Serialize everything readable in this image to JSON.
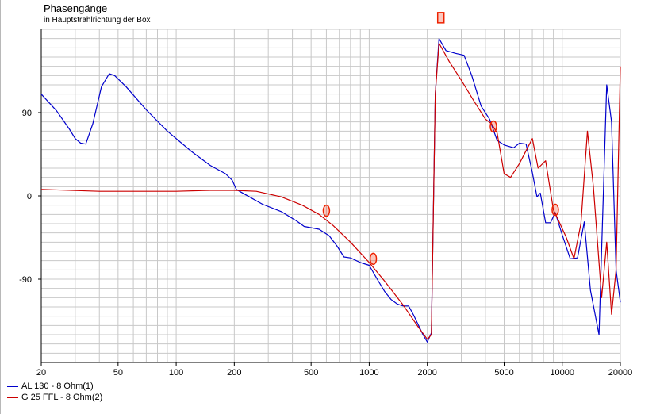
{
  "chart_data": {
    "type": "line",
    "title": "Phasengänge",
    "subtitle": "in Hauptstrahlrichtung der Box",
    "xscale": "log",
    "xlim": [
      20,
      20000
    ],
    "ylim": [
      -180,
      180
    ],
    "x_ticks": [
      {
        "value": 20,
        "label": "20"
      },
      {
        "value": 50,
        "label": "50"
      },
      {
        "value": 100,
        "label": "100"
      },
      {
        "value": 200,
        "label": "200"
      },
      {
        "value": 500,
        "label": "500"
      },
      {
        "value": 1000,
        "label": "1000"
      },
      {
        "value": 2000,
        "label": "2000"
      },
      {
        "value": 5000,
        "label": "5000"
      },
      {
        "value": 10000,
        "label": "10000"
      },
      {
        "value": 20000,
        "label": "20000"
      }
    ],
    "y_ticks": [
      {
        "value": 90,
        "label": "90"
      },
      {
        "value": 0,
        "label": "0"
      },
      {
        "value": -90,
        "label": "-90"
      }
    ],
    "grid": true,
    "legend_position": "bottom-left",
    "series": [
      {
        "name": "AL 130 - 8 Ohm(1)",
        "color": "#0000cc",
        "points": [
          [
            20,
            110
          ],
          [
            24,
            92
          ],
          [
            28,
            72
          ],
          [
            30,
            62
          ],
          [
            32,
            57
          ],
          [
            34,
            56
          ],
          [
            37,
            78
          ],
          [
            41,
            118
          ],
          [
            45,
            132
          ],
          [
            48,
            130
          ],
          [
            55,
            118
          ],
          [
            70,
            93
          ],
          [
            90,
            70
          ],
          [
            120,
            48
          ],
          [
            150,
            33
          ],
          [
            180,
            24
          ],
          [
            195,
            17
          ],
          [
            205,
            7
          ],
          [
            230,
            1
          ],
          [
            280,
            -9
          ],
          [
            350,
            -17
          ],
          [
            420,
            -27
          ],
          [
            460,
            -33
          ],
          [
            550,
            -36
          ],
          [
            620,
            -43
          ],
          [
            680,
            -54
          ],
          [
            740,
            -66
          ],
          [
            800,
            -67
          ],
          [
            900,
            -72
          ],
          [
            1000,
            -75
          ],
          [
            1100,
            -90
          ],
          [
            1200,
            -103
          ],
          [
            1300,
            -112
          ],
          [
            1400,
            -117
          ],
          [
            1500,
            -119
          ],
          [
            1600,
            -119
          ],
          [
            1700,
            -129
          ],
          [
            1900,
            -150
          ],
          [
            2000,
            -158
          ],
          [
            2100,
            -148
          ],
          [
            2200,
            110
          ],
          [
            2300,
            170
          ],
          [
            2500,
            157
          ],
          [
            2800,
            154
          ],
          [
            3100,
            152
          ],
          [
            3400,
            130
          ],
          [
            3800,
            97
          ],
          [
            4200,
            83
          ],
          [
            4600,
            60
          ],
          [
            5000,
            55
          ],
          [
            5600,
            52
          ],
          [
            6000,
            57
          ],
          [
            6500,
            56
          ],
          [
            7000,
            25
          ],
          [
            7400,
            -1
          ],
          [
            7700,
            3
          ],
          [
            8200,
            -29
          ],
          [
            8700,
            -29
          ],
          [
            9200,
            -18
          ],
          [
            10000,
            -42
          ],
          [
            11000,
            -68
          ],
          [
            12000,
            -67
          ],
          [
            13000,
            -28
          ],
          [
            14000,
            -102
          ],
          [
            15500,
            -150
          ],
          [
            17000,
            120
          ],
          [
            18000,
            80
          ],
          [
            19000,
            -80
          ],
          [
            20000,
            -115
          ]
        ]
      },
      {
        "name": "G 25 FFL - 8 Ohm(2)",
        "color": "#cc0000",
        "points": [
          [
            20,
            7
          ],
          [
            40,
            5
          ],
          [
            100,
            5
          ],
          [
            150,
            6
          ],
          [
            200,
            6
          ],
          [
            260,
            5
          ],
          [
            350,
            -1
          ],
          [
            450,
            -10
          ],
          [
            550,
            -20
          ],
          [
            650,
            -32
          ],
          [
            800,
            -50
          ],
          [
            1000,
            -72
          ],
          [
            1200,
            -92
          ],
          [
            1500,
            -118
          ],
          [
            1800,
            -142
          ],
          [
            2000,
            -155
          ],
          [
            2100,
            -150
          ],
          [
            2200,
            110
          ],
          [
            2300,
            165
          ],
          [
            2600,
            145
          ],
          [
            3000,
            125
          ],
          [
            3500,
            102
          ],
          [
            4000,
            83
          ],
          [
            4300,
            78
          ],
          [
            4600,
            68
          ],
          [
            5000,
            24
          ],
          [
            5400,
            20
          ],
          [
            6000,
            35
          ],
          [
            7000,
            62
          ],
          [
            7500,
            30
          ],
          [
            8200,
            38
          ],
          [
            9000,
            -15
          ],
          [
            9500,
            -25
          ],
          [
            10500,
            -45
          ],
          [
            11500,
            -68
          ],
          [
            12500,
            -30
          ],
          [
            13500,
            70
          ],
          [
            14500,
            10
          ],
          [
            16000,
            -110
          ],
          [
            17000,
            -50
          ],
          [
            18000,
            -128
          ],
          [
            19000,
            -80
          ],
          [
            20000,
            140
          ]
        ]
      }
    ],
    "markers": [
      {
        "shape": "rect",
        "x": 2350,
        "y": 193
      },
      {
        "shape": "ellipse",
        "x": 600,
        "y": -16
      },
      {
        "shape": "ellipse",
        "x": 1050,
        "y": -68
      },
      {
        "shape": "ellipse",
        "x": 4400,
        "y": 75
      },
      {
        "shape": "ellipse",
        "x": 9200,
        "y": -15
      }
    ],
    "marker_color": "#ee2200"
  }
}
